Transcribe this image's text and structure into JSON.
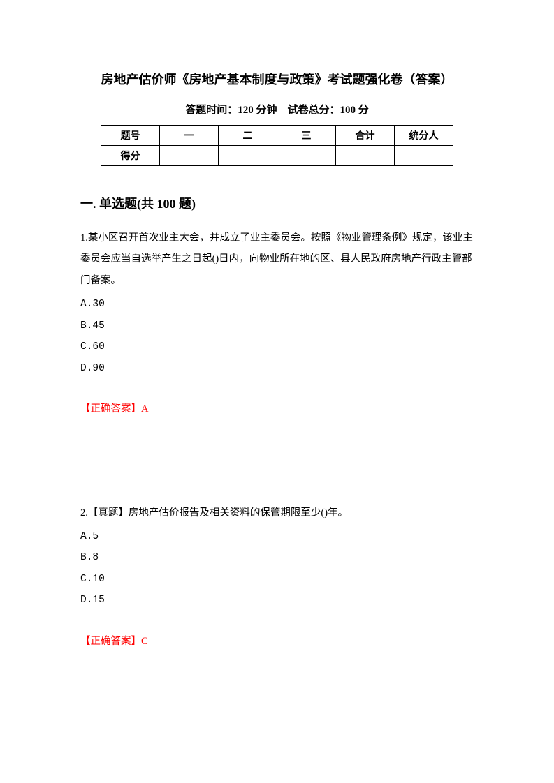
{
  "title": "房地产估价师《房地产基本制度与政策》考试题强化卷（答案）",
  "subtitle": "答题时间：120 分钟　试卷总分：100 分",
  "table": {
    "row1": [
      "题号",
      "一",
      "二",
      "三",
      "合计",
      "统分人"
    ],
    "row2": [
      "得分",
      "",
      "",
      "",
      "",
      ""
    ]
  },
  "section_heading": "一. 单选题(共 100 题)",
  "questions": [
    {
      "text": "1.某小区召开首次业主大会，并成立了业主委员会。按照《物业管理条例》规定，该业主委员会应当自选举产生之日起()日内，向物业所在地的区、县人民政府房地产行政主管部门备案。",
      "options": [
        "A.30",
        "B.45",
        "C.60",
        "D.90"
      ],
      "answer": "【正确答案】A"
    },
    {
      "text": "2.【真题】房地产估价报告及相关资料的保管期限至少()年。",
      "options": [
        "A.5",
        "B.8",
        "C.10",
        "D.15"
      ],
      "answer": "【正确答案】C"
    }
  ]
}
